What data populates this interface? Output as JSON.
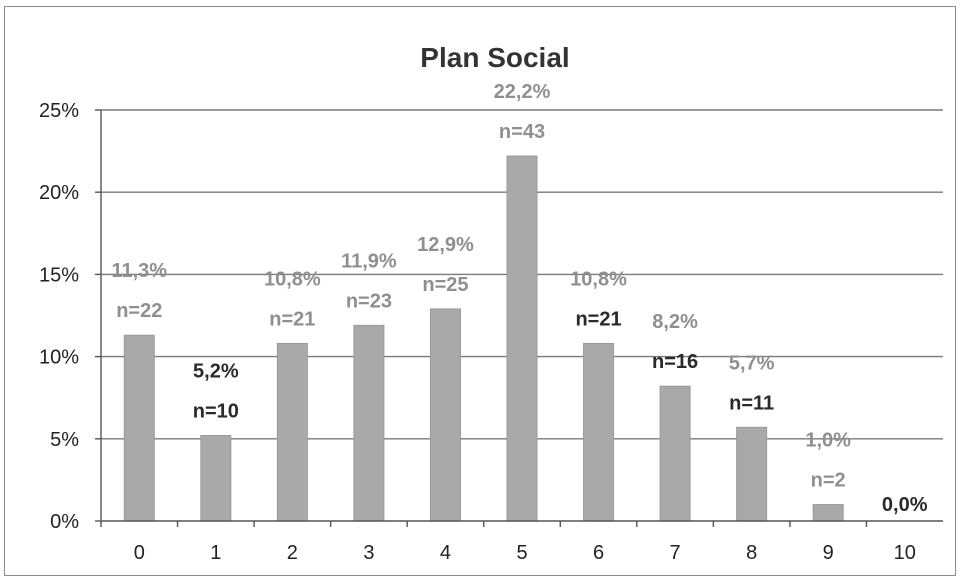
{
  "chart_data": {
    "type": "bar",
    "title": "Plan Social",
    "xlabel": "",
    "ylabel": "",
    "categories": [
      "0",
      "1",
      "2",
      "3",
      "4",
      "5",
      "6",
      "7",
      "8",
      "9",
      "10"
    ],
    "values": [
      11.3,
      5.2,
      10.8,
      11.9,
      12.9,
      22.2,
      10.8,
      8.2,
      5.7,
      1.0,
      0.0
    ],
    "value_labels": [
      "11,3%",
      "5,2%",
      "10,8%",
      "11,9%",
      "12,9%",
      "22,2%",
      "10,8%",
      "8,2%",
      "5,7%",
      "1,0%",
      "0,0%"
    ],
    "count_labels": [
      "n=22",
      "n=10",
      "n=21",
      "n=23",
      "n=25",
      "n=43",
      "n=21",
      "n=16",
      "n=11",
      "n=2",
      ""
    ],
    "ylim": [
      0,
      25
    ],
    "yticks": [
      0,
      5,
      10,
      15,
      20,
      25
    ],
    "ytick_labels": [
      "0%",
      "5%",
      "10%",
      "15%",
      "20%",
      "25%"
    ],
    "grid": true,
    "legend": "none",
    "colors": {
      "bar": "#a9a9a9",
      "bar_edge": "#9a9a9a",
      "label_gray": "#8f8f8f",
      "label_dark": "#2a2a2a"
    },
    "label_styles": [
      "gray",
      "dark",
      "gray",
      "gray",
      "gray",
      "gray",
      "mixed",
      "mixed",
      "mixed",
      "gray",
      "dark"
    ]
  }
}
